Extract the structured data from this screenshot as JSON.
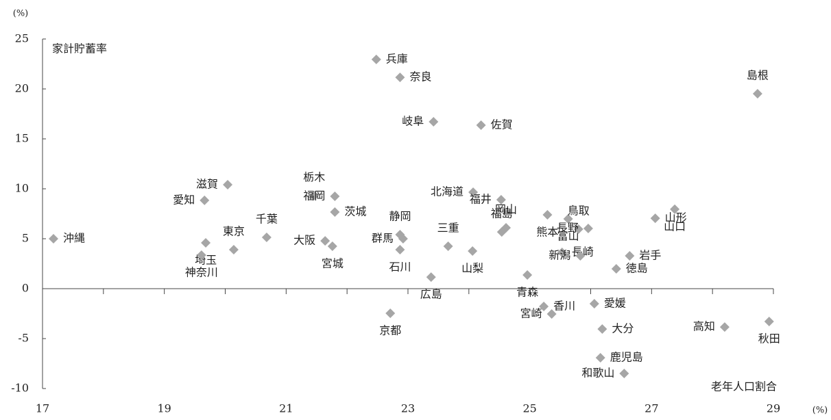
{
  "chart_data": {
    "type": "scatter",
    "y_unit": "(%)",
    "x_unit": "(%)",
    "ylabel": "家計貯蓄率",
    "xlabel": "老年人口割合",
    "color": "#a6a6a6",
    "xlim": [
      17,
      29
    ],
    "ylim": [
      -10,
      25
    ],
    "xticks": [
      17,
      19,
      21,
      23,
      25,
      27,
      29
    ],
    "xminor_ticks": [
      18,
      20,
      22,
      24,
      26,
      28
    ],
    "yticks": [
      -10,
      -5,
      0,
      5,
      10,
      15,
      20,
      25
    ],
    "labels": [
      "沖縄",
      "埼玉",
      "神奈川",
      "愛知",
      "滋賀",
      "東京",
      "千葉",
      "栃木",
      "福岡",
      "茨城",
      "大阪",
      "宮城",
      "兵庫",
      "奈良",
      "岐阜",
      "佐賀",
      "群馬",
      "静岡",
      "石川",
      "三重",
      "広島",
      "京都",
      "北海道",
      "福井",
      "岡山",
      "福島",
      "山梨",
      "青森",
      "香川",
      "宮崎",
      "熊本",
      "富山",
      "鳥取",
      "長野",
      "長崎",
      "新潟",
      "愛媛",
      "大分",
      "鹿児島",
      "和歌山",
      "岩手",
      "徳島",
      "山形",
      "山口",
      "島根",
      "高知",
      "秋田"
    ],
    "x": [
      17.18,
      19.68,
      19.61,
      19.66,
      20.04,
      20.14,
      20.68,
      21.46,
      21.8,
      21.8,
      21.64,
      21.76,
      22.48,
      22.87,
      23.42,
      24.2,
      22.92,
      22.87,
      22.87,
      23.66,
      23.38,
      22.71,
      24.07,
      24.53,
      24.61,
      24.54,
      24.06,
      24.96,
      25.23,
      25.36,
      25.29,
      25.63,
      25.8,
      25.96,
      25.53,
      25.83,
      26.06,
      26.19,
      26.16,
      26.55,
      26.64,
      26.42,
      27.06,
      27.38,
      28.74,
      28.2,
      28.93
    ],
    "y": [
      5.0,
      4.59,
      3.36,
      8.84,
      10.41,
      3.9,
      5.14,
      9.32,
      9.25,
      7.67,
      4.79,
      4.25,
      22.95,
      21.16,
      16.71,
      16.37,
      5.0,
      5.41,
      3.9,
      4.25,
      1.16,
      -2.47,
      9.66,
      8.9,
      6.1,
      5.68,
      3.77,
      1.37,
      -1.78,
      -2.53,
      7.4,
      6.99,
      5.96,
      6.03,
      3.63,
      3.29,
      -1.51,
      -4.04,
      -6.92,
      -8.49,
      3.29,
      1.99,
      7.05,
      7.95,
      19.52,
      -3.84,
      -3.29
    ]
  }
}
